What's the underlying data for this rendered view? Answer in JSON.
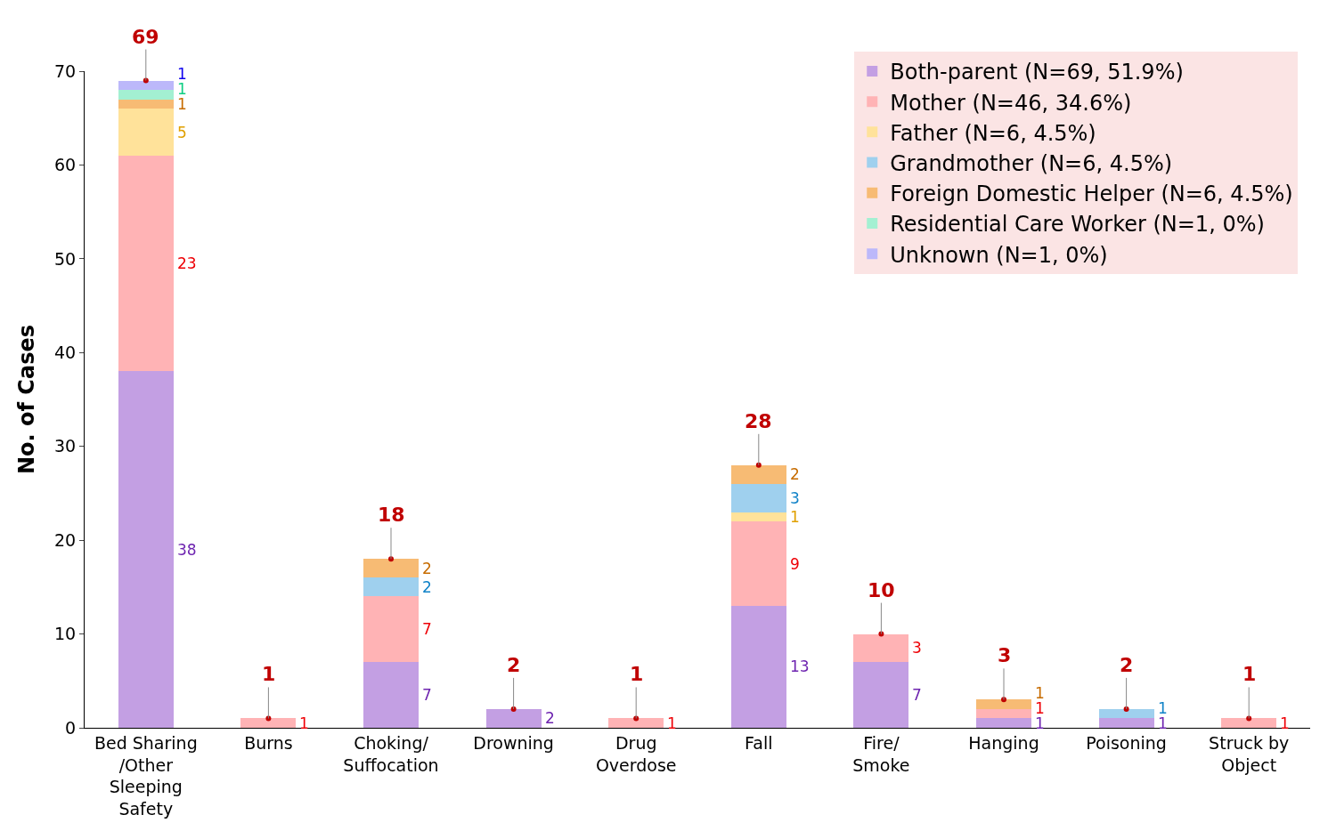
{
  "chart_data": {
    "type": "bar",
    "stacked": true,
    "ylabel": "No. of Cases",
    "categories": [
      "Bed Sharing /Other Sleeping Safety",
      "Burns",
      "Choking/ Suffocation",
      "Drowning",
      "Drug Overdose",
      "Fall",
      "Fire/ Smoke",
      "Hanging",
      "Poisoning",
      "Struck by Object"
    ],
    "series": [
      {
        "name": "Both-parent (N=69, 51.9%)",
        "color": "#c39fe3",
        "values": [
          38,
          0,
          7,
          2,
          0,
          13,
          7,
          1,
          1,
          0
        ],
        "value_labels": [
          "38",
          null,
          "7",
          "2",
          null,
          "13",
          "7",
          "1",
          "1",
          null
        ]
      },
      {
        "name": "Mother (N=46, 34.6%)",
        "color": "#ffb3b5",
        "values": [
          23,
          1,
          7,
          0,
          1,
          9,
          3,
          1,
          0,
          1
        ],
        "value_labels": [
          "23",
          "1",
          "7",
          null,
          "1",
          "9",
          "3",
          "1",
          null,
          "1"
        ]
      },
      {
        "name": "Father (N=6, 4.5%)",
        "color": "#ffe29a",
        "values": [
          5,
          0,
          0,
          0,
          0,
          1,
          0,
          0,
          0,
          0
        ],
        "value_labels": [
          "5",
          null,
          null,
          null,
          null,
          "1",
          null,
          null,
          null,
          null
        ]
      },
      {
        "name": "Grandmother (N=6, 4.5%)",
        "color": "#9fd0ee",
        "values": [
          0,
          0,
          2,
          0,
          0,
          3,
          0,
          0,
          1,
          0
        ],
        "value_labels": [
          null,
          null,
          "2",
          null,
          null,
          "3",
          null,
          null,
          "1",
          null
        ]
      },
      {
        "name": "Foreign Domestic Helper (N=6, 4.5%)",
        "color": "#f7bb74",
        "values": [
          1,
          0,
          2,
          0,
          0,
          2,
          0,
          1,
          0,
          0
        ],
        "value_labels": [
          "1",
          null,
          "2",
          null,
          null,
          "2",
          null,
          "1",
          null,
          null
        ]
      },
      {
        "name": "Residential Care Worker (N=1, 0%)",
        "color": "#a3f0d2",
        "values": [
          1,
          0,
          0,
          0,
          0,
          0,
          0,
          0,
          0,
          0
        ],
        "value_labels": [
          "1",
          null,
          null,
          null,
          null,
          null,
          null,
          null,
          null,
          null
        ]
      },
      {
        "name": "Unknown (N=1, 0%)",
        "color": "#bcb8fa",
        "values": [
          1,
          0,
          0,
          0,
          0,
          0,
          0,
          0,
          0,
          0
        ],
        "value_labels": [
          "1",
          null,
          null,
          null,
          null,
          null,
          null,
          null,
          null,
          null
        ]
      }
    ],
    "totals": [
      "69",
      "1",
      "18",
      "2",
      "1",
      "28",
      "10",
      "3",
      "2",
      "1"
    ],
    "ylim": [
      0,
      70
    ],
    "yticks": [
      0,
      10,
      20,
      30,
      40,
      50,
      60,
      70
    ],
    "legend": "top right"
  }
}
